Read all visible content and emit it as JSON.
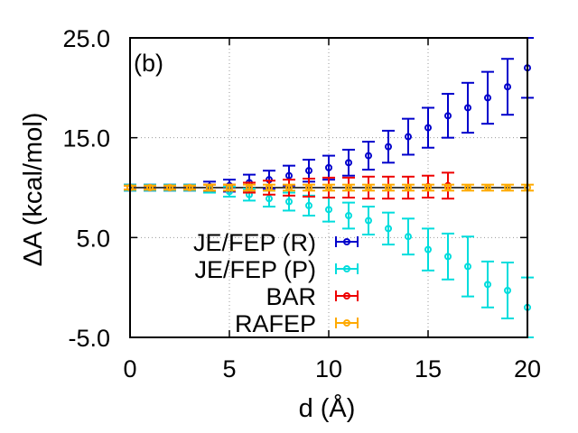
{
  "chart_data": {
    "type": "scatter",
    "title": "",
    "panel_label": "(b)",
    "xlabel": "d (Å)",
    "ylabel": "ΔA (kcal/mol)",
    "xlim": [
      0,
      20
    ],
    "ylim": [
      -5,
      25
    ],
    "x_ticks": [
      0,
      5,
      10,
      15,
      20
    ],
    "x_tick_labels": [
      "0",
      "5",
      "10",
      "15",
      "20"
    ],
    "y_ticks": [
      -5,
      5,
      15,
      25
    ],
    "y_tick_labels": [
      "-5.0",
      "5.0",
      "15.0",
      "25.0"
    ],
    "grid": true,
    "legend_position": "inside-left",
    "reference_line": 10.0,
    "series": [
      {
        "name": "JE/FEP (R)",
        "color": "#0000cc",
        "x": [
          0,
          1,
          2,
          3,
          4,
          5,
          6,
          7,
          8,
          9,
          10,
          11,
          12,
          13,
          14,
          15,
          16,
          17,
          18,
          19,
          20
        ],
        "y": [
          10.0,
          10.0,
          10.0,
          10.0,
          10.1,
          10.2,
          10.5,
          10.8,
          11.2,
          11.7,
          12.0,
          12.5,
          13.2,
          14.1,
          15.1,
          16.0,
          17.2,
          18.0,
          19.0,
          20.1,
          22.0
        ],
        "err": [
          0.3,
          0.3,
          0.3,
          0.3,
          0.5,
          0.6,
          0.8,
          0.9,
          1.0,
          1.1,
          1.2,
          1.3,
          1.4,
          1.6,
          1.8,
          2.0,
          2.2,
          2.5,
          2.6,
          2.8,
          3.0
        ]
      },
      {
        "name": "JE/FEP (P)",
        "color": "#00dddd",
        "x": [
          0,
          1,
          2,
          3,
          4,
          5,
          6,
          7,
          8,
          9,
          10,
          11,
          12,
          13,
          14,
          15,
          16,
          17,
          18,
          19,
          20
        ],
        "y": [
          10.0,
          10.0,
          10.0,
          10.0,
          9.9,
          9.6,
          9.3,
          8.9,
          8.6,
          8.2,
          7.8,
          7.2,
          6.7,
          5.9,
          5.1,
          3.8,
          3.1,
          2.1,
          0.3,
          -0.3,
          -2.0
        ],
        "err": [
          0.3,
          0.3,
          0.3,
          0.3,
          0.4,
          0.5,
          0.6,
          0.8,
          0.9,
          1.0,
          1.2,
          1.3,
          1.4,
          1.6,
          1.8,
          2.1,
          2.3,
          3.0,
          2.3,
          2.8,
          3.0
        ]
      },
      {
        "name": "BAR",
        "color": "#ee0000",
        "x": [
          0,
          1,
          2,
          3,
          4,
          5,
          6,
          7,
          8,
          9,
          10,
          11,
          12,
          13,
          14,
          15,
          16
        ],
        "y": [
          10.0,
          10.0,
          10.0,
          10.0,
          10.0,
          10.0,
          10.0,
          10.0,
          10.0,
          10.0,
          10.0,
          10.0,
          10.0,
          10.0,
          10.0,
          10.1,
          10.2
        ],
        "err": [
          0.2,
          0.2,
          0.2,
          0.2,
          0.3,
          0.3,
          0.5,
          0.7,
          0.8,
          0.9,
          1.0,
          1.0,
          1.1,
          1.1,
          1.1,
          1.1,
          1.3
        ]
      },
      {
        "name": "RAFEP",
        "color": "#ffaa00",
        "x": [
          0,
          1,
          2,
          3,
          4,
          5,
          6,
          7,
          8,
          9,
          10,
          11,
          12,
          13,
          14,
          15,
          16,
          17,
          18,
          19,
          20
        ],
        "y": [
          10.0,
          10.0,
          10.0,
          10.0,
          10.0,
          10.0,
          10.0,
          10.0,
          10.0,
          10.0,
          10.0,
          10.0,
          10.0,
          10.0,
          10.0,
          10.0,
          10.0,
          10.0,
          10.0,
          10.0,
          10.0
        ],
        "err": [
          0.2,
          0.2,
          0.2,
          0.2,
          0.3,
          0.3,
          0.3,
          0.3,
          0.3,
          0.3,
          0.3,
          0.3,
          0.3,
          0.3,
          0.3,
          0.3,
          0.3,
          0.3,
          0.3,
          0.3,
          0.3
        ]
      }
    ]
  }
}
